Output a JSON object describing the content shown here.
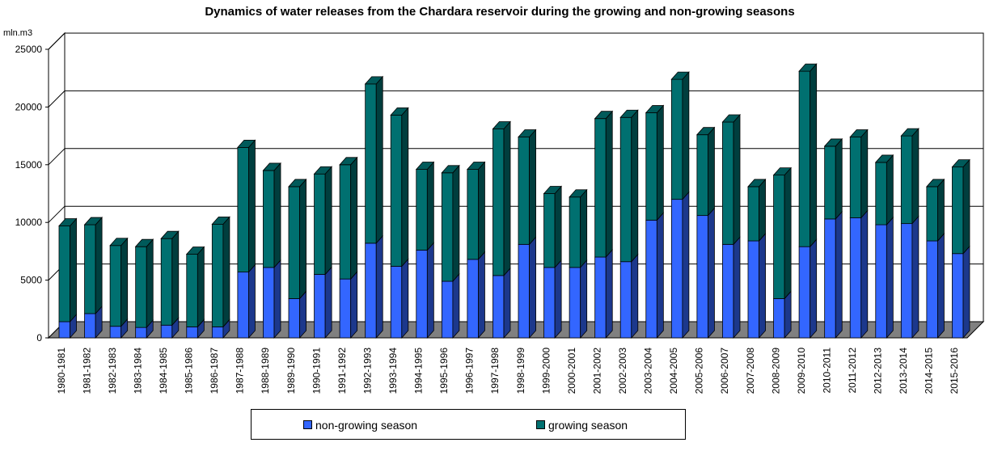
{
  "chart_data": {
    "type": "bar",
    "stacked": true,
    "three_d": true,
    "title": "Dynamics of water releases from the Chardara reservoir during the growing and non-growing seasons",
    "ylabel": "mln.m3",
    "xlabel": "",
    "ylim": [
      0,
      25000
    ],
    "yticks": [
      0,
      5000,
      10000,
      15000,
      20000,
      25000
    ],
    "grid": true,
    "legend_position": "bottom",
    "categories": [
      "1980-1981",
      "1981-1982",
      "1982-1983",
      "1983-1984",
      "1984-1985",
      "1985-1986",
      "1986-1987",
      "1987-1988",
      "1988-1989",
      "1989-1990",
      "1990-1991",
      "1991-1992",
      "1992-1993",
      "1993-1994",
      "1994-1995",
      "1995-1996",
      "1996-1997",
      "1997-1998",
      "1998-1999",
      "1999-2000",
      "2000-2001",
      "2001-2002",
      "2002-2003",
      "2003-2004",
      "2004-2005",
      "2005-2006",
      "2006-2007",
      "2007-2008",
      "2008-2009",
      "2009-2010",
      "2010-2011",
      "2011-2012",
      "2012-2013",
      "2013-2014",
      "2014-2015",
      "2015-2016"
    ],
    "series": [
      {
        "name": "non-growing season",
        "color": "#3366ff",
        "values": [
          1400,
          2100,
          1000,
          900,
          1100,
          950,
          950,
          5700,
          6100,
          3400,
          5500,
          5100,
          8200,
          6200,
          7600,
          4900,
          6800,
          5400,
          8100,
          6100,
          6100,
          7000,
          6600,
          10200,
          12000,
          10600,
          8100,
          8400,
          3400,
          7900,
          10300,
          10400,
          9800,
          9900,
          8400,
          7300
        ]
      },
      {
        "name": "growing season",
        "color": "#007070",
        "values": [
          8300,
          7700,
          7000,
          7000,
          7500,
          6300,
          8900,
          10800,
          8400,
          9700,
          8700,
          9900,
          13800,
          13100,
          7000,
          9400,
          7800,
          12700,
          9300,
          6400,
          6100,
          12000,
          12500,
          9300,
          10400,
          7000,
          10600,
          4700,
          10700,
          15200,
          6300,
          7000,
          5400,
          7600,
          4700,
          7500
        ]
      }
    ]
  }
}
